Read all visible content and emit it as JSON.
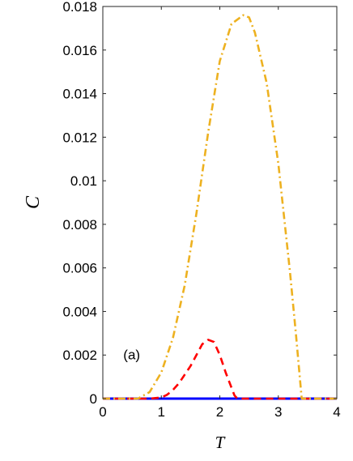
{
  "chart_data": {
    "type": "line",
    "title": "",
    "xlabel": "T",
    "ylabel": "C",
    "annotation": "(a)",
    "xlim": [
      0,
      4
    ],
    "ylim": [
      0,
      0.018
    ],
    "xticks": [
      0,
      1,
      2,
      3,
      4
    ],
    "xtick_labels": [
      "0",
      "1",
      "2",
      "3",
      "4"
    ],
    "yticks": [
      0,
      0.002,
      0.004,
      0.006,
      0.008,
      0.01,
      0.012,
      0.014,
      0.016,
      0.018
    ],
    "ytick_labels": [
      "0",
      "0.002",
      "0.004",
      "0.006",
      "0.008",
      "0.01",
      "0.012",
      "0.014",
      "0.016",
      "0.018"
    ],
    "grid": false,
    "series": [
      {
        "color": "#0000ff",
        "style": "solid",
        "x": [
          0.0,
          4.0
        ],
        "y": [
          0.0,
          0.0
        ]
      },
      {
        "color": "#ff0000",
        "style": "dashed",
        "x": [
          0.0,
          0.8,
          1.0,
          1.1,
          1.2,
          1.3,
          1.4,
          1.5,
          1.6,
          1.7,
          1.8,
          1.9,
          2.0,
          2.1,
          2.2,
          2.25,
          2.3,
          4.0
        ],
        "y": [
          0.0,
          0.0,
          5e-05,
          0.00018,
          0.0004,
          0.0007,
          0.0011,
          0.0015,
          0.002,
          0.0025,
          0.0027,
          0.0026,
          0.002,
          0.0012,
          0.0005,
          0.00015,
          0.0,
          0.0
        ]
      },
      {
        "color": "#edb120",
        "style": "dashdot",
        "x": [
          0.0,
          0.6,
          0.8,
          1.0,
          1.2,
          1.4,
          1.6,
          1.8,
          2.0,
          2.2,
          2.4,
          2.5,
          2.6,
          2.8,
          3.0,
          3.2,
          3.3,
          3.35,
          3.4,
          4.0
        ],
        "y": [
          0.0,
          0.0,
          0.0003,
          0.0012,
          0.0028,
          0.0052,
          0.0085,
          0.0122,
          0.0155,
          0.0172,
          0.0176,
          0.0175,
          0.0168,
          0.0145,
          0.0108,
          0.0058,
          0.003,
          0.0015,
          0.0,
          0.0
        ]
      }
    ]
  }
}
